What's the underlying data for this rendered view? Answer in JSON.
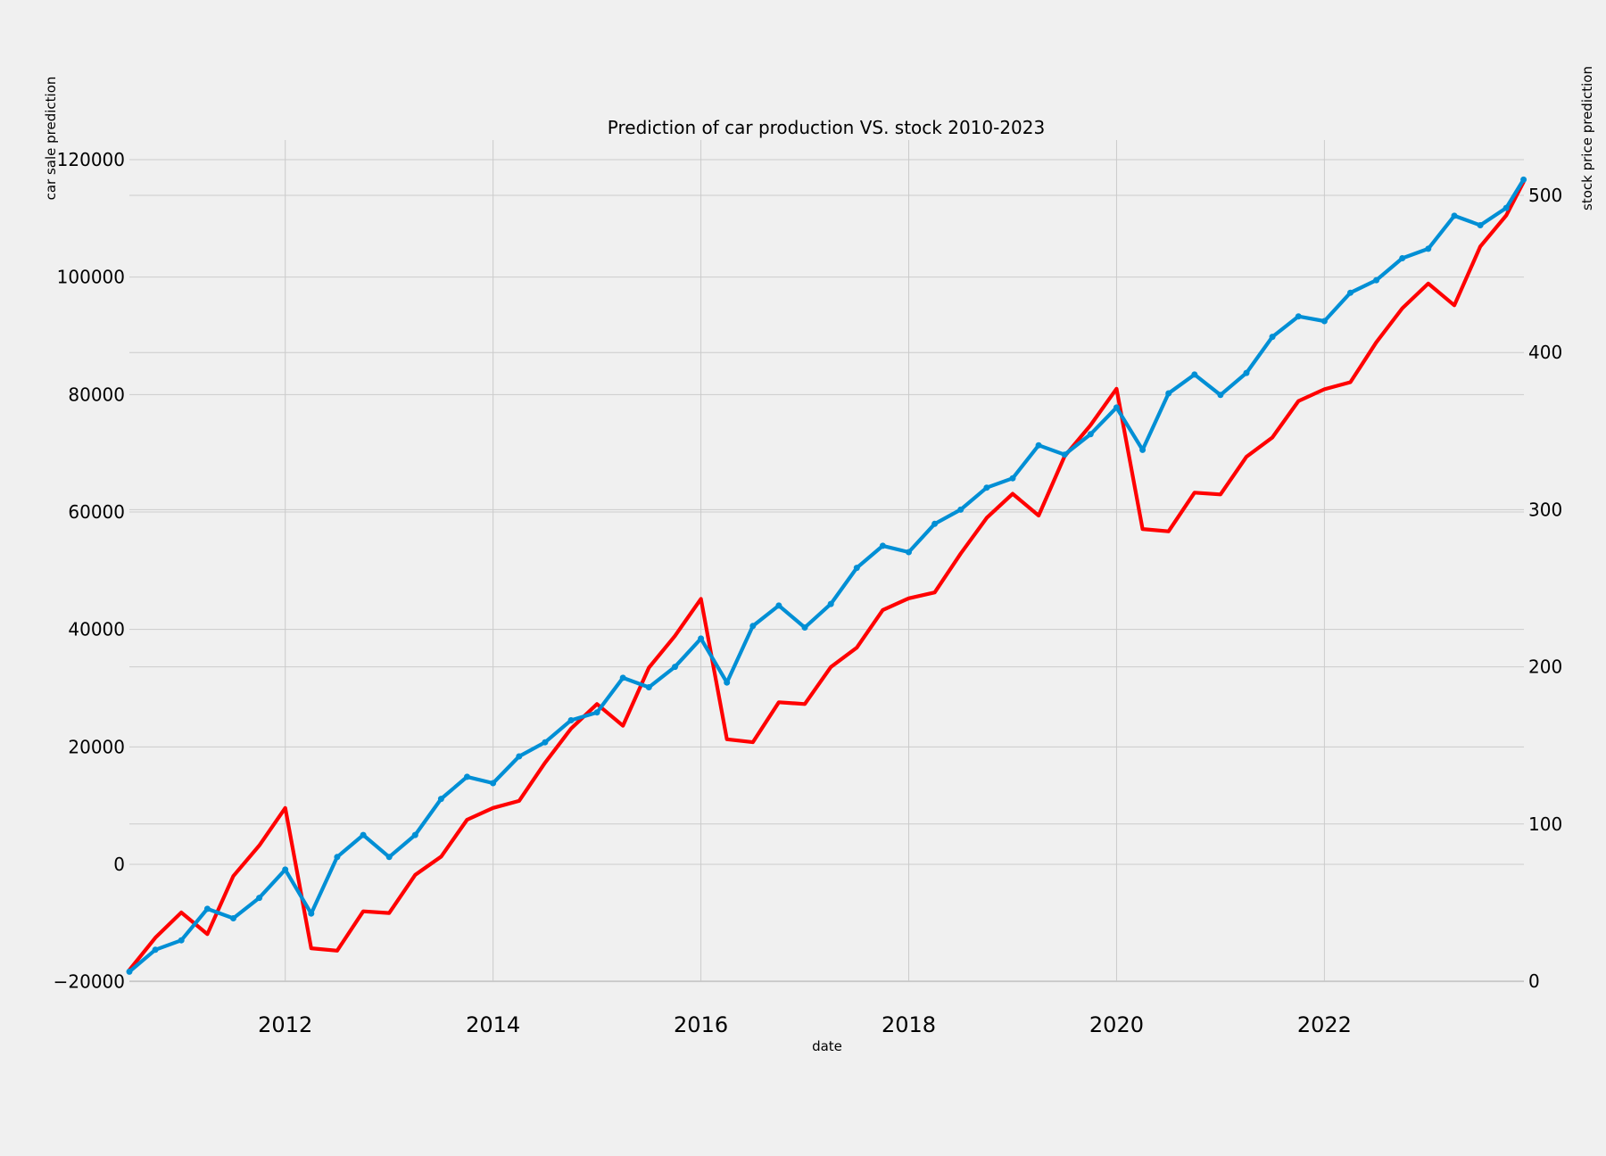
{
  "chart_data": {
    "type": "line",
    "title": "Prediction of car production VS. stock 2010-2023",
    "xlabel": "date",
    "ylabel_left": "car sale prediction",
    "ylabel_right": "stock price prediction",
    "grid": true,
    "x_ticks": [
      "2012",
      "2014",
      "2016",
      "2018",
      "2020",
      "2022"
    ],
    "y_left_ticks": [
      "−20000",
      "0",
      "20000",
      "40000",
      "60000",
      "80000",
      "100000",
      "120000"
    ],
    "y_right_ticks": [
      "0",
      "100",
      "200",
      "300",
      "400",
      "500"
    ],
    "x": [
      "2010-07",
      "2010-10",
      "2011-01",
      "2011-04",
      "2011-07",
      "2011-10",
      "2012-01",
      "2012-04",
      "2012-07",
      "2012-10",
      "2013-01",
      "2013-04",
      "2013-07",
      "2013-10",
      "2014-01",
      "2014-04",
      "2014-07",
      "2014-10",
      "2015-01",
      "2015-04",
      "2015-07",
      "2015-10",
      "2016-01",
      "2016-04",
      "2016-07",
      "2016-10",
      "2017-01",
      "2017-04",
      "2017-07",
      "2017-10",
      "2018-01",
      "2018-04",
      "2018-07",
      "2018-10",
      "2019-01",
      "2019-04",
      "2019-07",
      "2019-10",
      "2020-01",
      "2020-04",
      "2020-07",
      "2020-10",
      "2021-01",
      "2021-04",
      "2021-07",
      "2021-10",
      "2022-01",
      "2022-04",
      "2022-07",
      "2022-10",
      "2023-01",
      "2023-04",
      "2023-07",
      "2023-10",
      "2023-12"
    ],
    "series": [
      {
        "axis": "left",
        "color": "#ff0000",
        "marker": false,
        "values": [
          -18000,
          -12500,
          -8200,
          -11900,
          -2000,
          3200,
          9600,
          -14300,
          -14700,
          -8000,
          -8300,
          -1800,
          1300,
          7600,
          9600,
          10800,
          17300,
          23100,
          27300,
          23600,
          33500,
          38900,
          45200,
          21300,
          20800,
          27600,
          27300,
          33600,
          36900,
          43300,
          45300,
          46300,
          52900,
          59000,
          63100,
          59400,
          69500,
          74800,
          81000,
          57100,
          56700,
          63300,
          63000,
          69400,
          72700,
          78900,
          80900,
          82100,
          88900,
          94700,
          98900,
          95200,
          105200,
          110500,
          116200
        ]
      },
      {
        "axis": "right",
        "color": "#008fd5",
        "marker": true,
        "values": [
          6,
          20,
          26,
          46,
          40,
          53,
          71,
          43,
          79,
          93,
          79,
          93,
          116,
          130,
          126,
          143,
          152,
          166,
          171,
          193,
          187,
          200,
          218,
          190,
          226,
          239,
          225,
          240,
          263,
          277,
          273,
          291,
          300,
          314,
          320,
          341,
          335,
          348,
          365,
          338,
          374,
          386,
          373,
          387,
          410,
          423,
          420,
          438,
          446,
          460,
          466,
          487,
          481,
          492,
          510
        ]
      }
    ]
  }
}
